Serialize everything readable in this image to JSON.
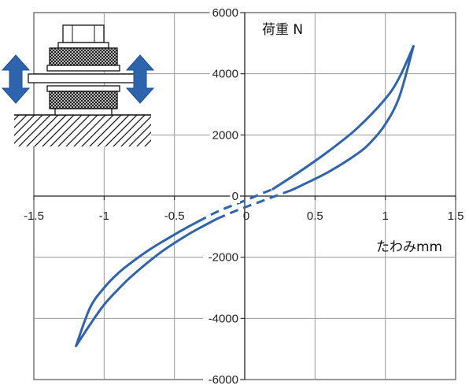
{
  "chart_data": {
    "type": "line",
    "xlabel": "たわみmm",
    "ylabel": "荷重 N",
    "xlim": [
      -1.5,
      1.5
    ],
    "ylim": [
      -6000,
      6000
    ],
    "x_ticks": [
      -1.5,
      -1,
      -0.5,
      0,
      0.5,
      1,
      1.5
    ],
    "y_ticks": [
      -6000,
      -4000,
      -2000,
      0,
      2000,
      4000,
      6000
    ],
    "x_tick_labels": [
      "-1.5",
      "-1",
      "-0.5",
      "0",
      "0.5",
      "1",
      "1.5"
    ],
    "y_tick_labels": [
      "-6000",
      "-4000",
      "-2000",
      "0",
      "2000",
      "4000",
      "6000"
    ],
    "grid": true,
    "series": [
      {
        "color": "#2e64ad",
        "segments": [
          {
            "style": "solid",
            "x": [
              -1.2,
              -1.1,
              -1.0,
              -0.9,
              -0.8,
              -0.7,
              -0.6,
              -0.5,
              -0.4,
              -0.33
            ],
            "y": [
              -4900,
              -3650,
              -3000,
              -2520,
              -2150,
              -1820,
              -1530,
              -1260,
              -1000,
              -830
            ]
          },
          {
            "style": "dashed",
            "x": [
              -0.33,
              -0.2,
              -0.1,
              0.0,
              0.1,
              0.2
            ],
            "y": [
              -830,
              -520,
              -330,
              -150,
              40,
              230
            ]
          },
          {
            "style": "solid",
            "x": [
              0.2,
              0.4,
              0.6,
              0.8,
              1.0,
              1.1,
              1.2
            ],
            "y": [
              230,
              830,
              1480,
              2220,
              3180,
              3880,
              4900
            ]
          },
          {
            "style": "solid",
            "x": [
              1.2,
              1.1,
              1.0,
              0.9,
              0.8,
              0.6,
              0.4,
              0.33
            ],
            "y": [
              4900,
              3250,
              2350,
              1780,
              1380,
              800,
              340,
              190
            ]
          },
          {
            "style": "dashed",
            "x": [
              0.33,
              0.2,
              0.1,
              0.0,
              -0.1,
              -0.2
            ],
            "y": [
              190,
              -30,
              -200,
              -370,
              -550,
              -750
            ]
          },
          {
            "style": "solid",
            "x": [
              -0.2,
              -0.4,
              -0.6,
              -0.8,
              -0.9,
              -1.0,
              -1.1,
              -1.2
            ],
            "y": [
              -750,
              -1250,
              -1850,
              -2600,
              -3050,
              -3550,
              -4200,
              -4900
            ]
          }
        ]
      }
    ]
  },
  "illustration": {
    "description_icon": "bolted-rubber-mount-icon",
    "arrow_icon": "double-arrow-vertical-icon",
    "arrow_color": "#2e64ad"
  }
}
